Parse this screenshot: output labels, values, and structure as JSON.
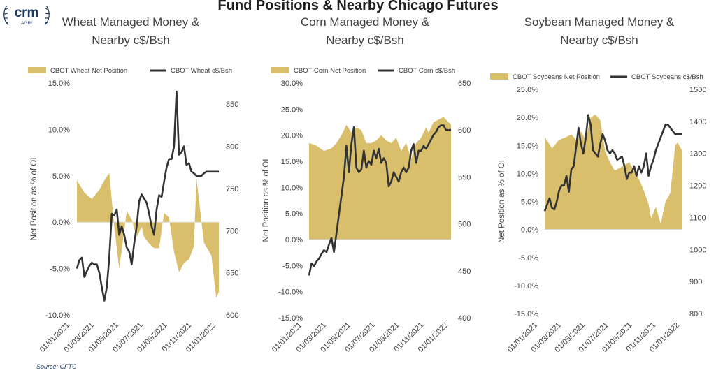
{
  "page_title": "Fund Positions & Nearby Chicago Futures",
  "logo": {
    "text": "crm",
    "subtext": "AGRI"
  },
  "source": "Source: CFTC",
  "colors": {
    "area": "#D9BE6C",
    "line": "#333333",
    "title": "#404040",
    "source": "#1f3a5f"
  },
  "chart_data": [
    {
      "type": "area",
      "title_lines": [
        "Wheat Managed Money &",
        "Nearby c$/Bsh"
      ],
      "ylabel": "Net Position as % of OI",
      "y2label": "",
      "ylim": [
        -10,
        15
      ],
      "yticks": [
        "15.0%",
        "10.0%",
        "5.0%",
        "0.0%",
        "-5.0%",
        "-10.0%"
      ],
      "yticks_values": [
        15,
        10,
        5,
        0,
        -5,
        -10
      ],
      "y2lim": [
        600,
        875
      ],
      "y2ticks": [
        "850",
        "800",
        "750",
        "700",
        "650",
        "600"
      ],
      "y2ticks_values": [
        850,
        800,
        750,
        700,
        650,
        600
      ],
      "xticks": [
        "01/01/2021",
        "01/03/2021",
        "01/05/2021",
        "01/07/2021",
        "01/09/2021",
        "01/11/2021",
        "01/01/2022"
      ],
      "xlim": [
        0,
        57
      ],
      "legend": "top",
      "series": [
        {
          "name": "CBOT Wheat Net Position",
          "kind": "area",
          "x": [
            0,
            3,
            6,
            9,
            11,
            13,
            15,
            17,
            18,
            20,
            22,
            24,
            26,
            27,
            29,
            31,
            33,
            35,
            37,
            39,
            41,
            43,
            45,
            47,
            48,
            51,
            54,
            56,
            57
          ],
          "values": [
            4.5,
            3.2,
            2.5,
            3.5,
            4.5,
            5.3,
            -0.5,
            -5,
            -3,
            1.2,
            0.3,
            -1.6,
            -0.5,
            -1.6,
            -2.3,
            -2.8,
            -2.8,
            1.0,
            0.5,
            -3.2,
            -5.4,
            -4.4,
            -4.0,
            -2.6,
            4.8,
            -2.2,
            -3.6,
            -8.2,
            -7.5
          ]
        },
        {
          "name": "CBOT Wheat c$/Bsh",
          "kind": "line",
          "x": [
            0,
            1,
            2,
            3,
            4,
            5,
            6,
            7,
            8,
            9,
            10,
            11,
            12,
            13,
            14,
            15,
            16,
            17,
            18,
            19,
            20,
            21,
            22,
            23,
            24,
            25,
            26,
            27,
            28,
            29,
            30,
            31,
            32,
            33,
            34,
            35,
            36,
            37,
            38,
            39,
            40,
            41,
            42,
            43,
            44,
            45,
            46,
            47,
            48,
            49,
            50,
            51,
            52,
            53,
            54,
            55,
            56,
            57
          ],
          "values": [
            655,
            665,
            668,
            645,
            652,
            658,
            662,
            660,
            660,
            650,
            633,
            617,
            633,
            668,
            720,
            718,
            725,
            695,
            705,
            695,
            680,
            675,
            660,
            685,
            705,
            735,
            743,
            738,
            733,
            720,
            705,
            695,
            725,
            742,
            740,
            758,
            775,
            785,
            785,
            800,
            865,
            790,
            793,
            800,
            778,
            780,
            770,
            768,
            765,
            765,
            765,
            768,
            770,
            770,
            770,
            770,
            770,
            770
          ]
        }
      ]
    },
    {
      "type": "area",
      "title_lines": [
        "Corn Managed Money &",
        "Nearby c$/Bsh"
      ],
      "ylabel": "Net Position as % of OI",
      "y2label": "",
      "ylim": [
        -15,
        30
      ],
      "yticks": [
        "30.0%",
        "25.0%",
        "20.0%",
        "15.0%",
        "10.0%",
        "5.0%",
        "0.0%",
        "-5.0%",
        "-10.0%",
        "-15.0%"
      ],
      "yticks_values": [
        30,
        25,
        20,
        15,
        10,
        5,
        0,
        -5,
        -10,
        -15
      ],
      "y2lim": [
        400,
        650
      ],
      "y2ticks": [
        "650",
        "600",
        "550",
        "500",
        "450",
        "400"
      ],
      "y2ticks_values": [
        650,
        600,
        550,
        500,
        450,
        400
      ],
      "xticks": [
        "01/01/2021",
        "01/03/2021",
        "01/05/2021",
        "01/07/2021",
        "01/09/2021",
        "01/11/2021",
        "01/01/2022"
      ],
      "xlim": [
        0,
        57
      ],
      "legend": "top",
      "series": [
        {
          "name": "CBOT Corn Net Position",
          "kind": "area",
          "x": [
            0,
            3,
            6,
            9,
            11,
            13,
            15,
            17,
            19,
            21,
            23,
            25,
            27,
            29,
            31,
            33,
            35,
            37,
            39,
            41,
            43,
            45,
            47,
            48,
            50,
            52,
            54,
            55,
            57
          ],
          "values": [
            18.5,
            18,
            17,
            17.5,
            18.5,
            20,
            22,
            20.5,
            21.5,
            21,
            18.5,
            18.5,
            19,
            20,
            19,
            18.5,
            19.5,
            17,
            18.5,
            15.5,
            18.5,
            19.5,
            21.5,
            20.5,
            22.5,
            23,
            23.5,
            23,
            22
          ]
        },
        {
          "name": "CBOT Corn c$/Bsh",
          "kind": "line",
          "x": [
            0,
            1,
            2,
            3,
            4,
            5,
            6,
            7,
            8,
            9,
            10,
            11,
            12,
            13,
            14,
            15,
            16,
            17,
            18,
            19,
            20,
            21,
            22,
            23,
            24,
            25,
            26,
            27,
            28,
            29,
            30,
            31,
            32,
            33,
            34,
            35,
            36,
            37,
            38,
            39,
            40,
            41,
            42,
            43,
            44,
            45,
            46,
            47,
            48,
            49,
            50,
            51,
            52,
            53,
            54,
            55,
            56,
            57
          ],
          "values": [
            445,
            458,
            455,
            460,
            463,
            468,
            472,
            470,
            478,
            485,
            470,
            490,
            510,
            530,
            550,
            583,
            555,
            585,
            603,
            560,
            555,
            558,
            578,
            560,
            567,
            563,
            578,
            570,
            580,
            565,
            570,
            565,
            540,
            545,
            555,
            550,
            545,
            555,
            560,
            555,
            560,
            578,
            585,
            565,
            578,
            578,
            583,
            580,
            585,
            590,
            595,
            598,
            603,
            605,
            605,
            600,
            600,
            600
          ]
        }
      ]
    },
    {
      "type": "area",
      "title_lines": [
        "Soybean Managed Money &",
        "Nearby c$/Bsh"
      ],
      "ylabel": "Net Position as % of OI",
      "y2label": "",
      "ylim": [
        -15,
        25
      ],
      "yticks": [
        "25.0%",
        "20.0%",
        "15.0%",
        "10.0%",
        "5.0%",
        "0.0%",
        "-5.0%",
        "-10.0%",
        "-15.0%"
      ],
      "yticks_values": [
        25,
        20,
        15,
        10,
        5,
        0,
        -5,
        -10,
        -15
      ],
      "y2lim": [
        800,
        1500
      ],
      "y2ticks": [
        "1500",
        "1400",
        "1300",
        "1200",
        "1100",
        "1000",
        "900",
        "800"
      ],
      "y2ticks_values": [
        1500,
        1400,
        1300,
        1200,
        1100,
        1000,
        900,
        800
      ],
      "xticks": [
        "01/01/2021",
        "01/03/2021",
        "01/05/2021",
        "01/07/2021",
        "01/09/2021",
        "01/11/2021",
        "01/01/2022"
      ],
      "xlim": [
        0,
        57
      ],
      "legend": "top",
      "series": [
        {
          "name": "CBOT Soybeans Net Position",
          "kind": "area",
          "x": [
            0,
            3,
            6,
            9,
            11,
            13,
            15,
            17,
            19,
            21,
            23,
            25,
            27,
            29,
            31,
            33,
            35,
            37,
            39,
            41,
            43,
            44,
            46,
            48,
            50,
            52,
            54,
            55,
            57
          ],
          "values": [
            16.5,
            14.5,
            16,
            16.5,
            17,
            16,
            17.5,
            16,
            20,
            20.5,
            19.5,
            14,
            12,
            10.5,
            11,
            11.5,
            12,
            10.5,
            9,
            7,
            4.5,
            2,
            4,
            1,
            5,
            6.5,
            15,
            15.5,
            14
          ]
        },
        {
          "name": "CBOT Soybeans c$/Bsh",
          "kind": "line",
          "x": [
            0,
            1,
            2,
            3,
            4,
            5,
            6,
            7,
            8,
            9,
            10,
            11,
            12,
            13,
            14,
            15,
            16,
            17,
            18,
            19,
            20,
            21,
            22,
            23,
            24,
            25,
            26,
            27,
            28,
            29,
            30,
            31,
            32,
            33,
            34,
            35,
            36,
            37,
            38,
            39,
            40,
            41,
            42,
            43,
            44,
            45,
            46,
            47,
            48,
            49,
            50,
            51,
            52,
            53,
            54,
            55,
            56,
            57
          ],
          "values": [
            1120,
            1140,
            1160,
            1130,
            1125,
            1150,
            1185,
            1200,
            1200,
            1230,
            1180,
            1250,
            1260,
            1320,
            1380,
            1330,
            1300,
            1350,
            1420,
            1390,
            1310,
            1300,
            1290,
            1330,
            1360,
            1340,
            1310,
            1300,
            1310,
            1300,
            1280,
            1285,
            1290,
            1260,
            1220,
            1240,
            1240,
            1260,
            1230,
            1260,
            1240,
            1260,
            1300,
            1230,
            1260,
            1280,
            1310,
            1330,
            1350,
            1370,
            1390,
            1390,
            1380,
            1370,
            1360,
            1360,
            1360,
            1360
          ]
        }
      ]
    }
  ]
}
